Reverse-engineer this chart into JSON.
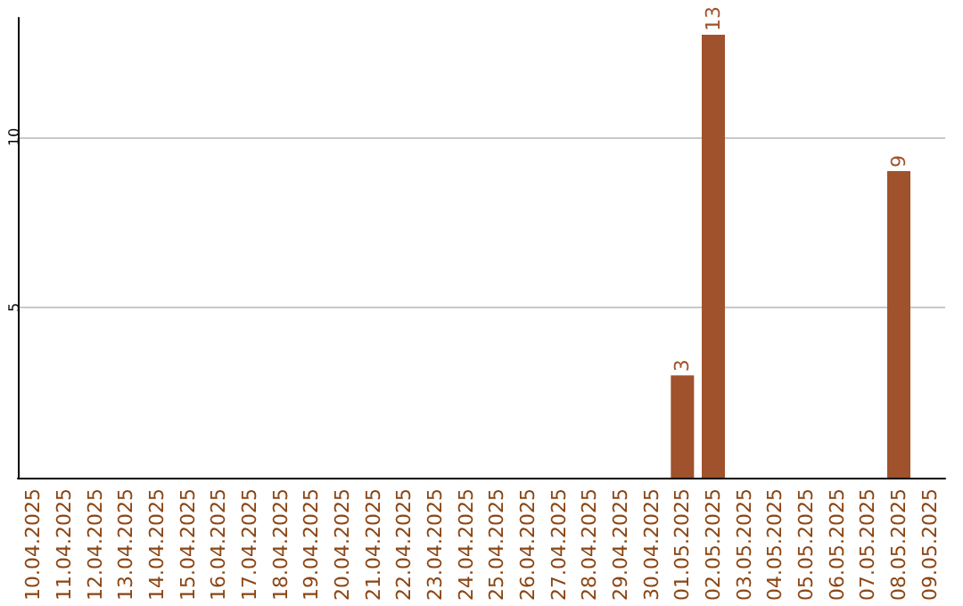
{
  "chart_data": {
    "type": "bar",
    "categories": [
      "10.04.2025",
      "11.04.2025",
      "12.04.2025",
      "13.04.2025",
      "14.04.2025",
      "15.04.2025",
      "16.04.2025",
      "17.04.2025",
      "18.04.2025",
      "19.04.2025",
      "20.04.2025",
      "21.04.2025",
      "22.04.2025",
      "23.04.2025",
      "24.04.2025",
      "25.04.2025",
      "26.04.2025",
      "27.04.2025",
      "28.04.2025",
      "29.04.2025",
      "30.04.2025",
      "01.05.2025",
      "02.05.2025",
      "03.05.2025",
      "04.05.2025",
      "05.05.2025",
      "06.05.2025",
      "07.05.2025",
      "08.05.2025",
      "09.05.2025"
    ],
    "values": [
      0,
      0,
      0,
      0,
      0,
      0,
      0,
      0,
      0,
      0,
      0,
      0,
      0,
      0,
      0,
      0,
      0,
      0,
      0,
      0,
      0,
      3,
      13,
      0,
      0,
      0,
      0,
      0,
      9,
      0
    ],
    "value_labels": [
      null,
      null,
      null,
      null,
      null,
      null,
      null,
      null,
      null,
      null,
      null,
      null,
      null,
      null,
      null,
      null,
      null,
      null,
      null,
      null,
      null,
      "3",
      "13",
      null,
      null,
      null,
      null,
      null,
      "9",
      null
    ],
    "color": "#a0522d",
    "ylim": [
      0,
      13.5
    ],
    "yticks": [
      5,
      10
    ],
    "grid": "y"
  }
}
